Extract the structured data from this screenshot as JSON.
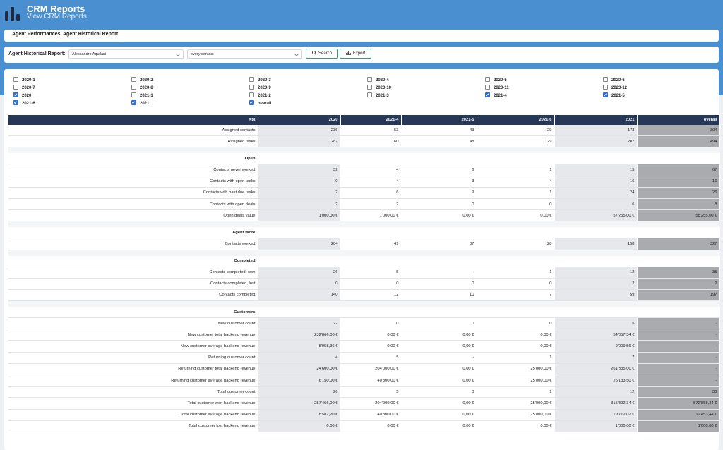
{
  "header": {
    "title": "CRM Reports",
    "subtitle": "View CRM Reports"
  },
  "tabs": [
    {
      "label": "Agent Performances",
      "active": false
    },
    {
      "label": "Agent Historical Report",
      "active": true
    }
  ],
  "filters": {
    "label": "Agent Historical Report:",
    "agent": "Alessandro Aquilani",
    "contacts": "every contact",
    "search": "Search",
    "export": "Export"
  },
  "periods": [
    {
      "label": "2020-1",
      "checked": false
    },
    {
      "label": "2020-2",
      "checked": false
    },
    {
      "label": "2020-3",
      "checked": false
    },
    {
      "label": "2020-4",
      "checked": false
    },
    {
      "label": "2020-5",
      "checked": false
    },
    {
      "label": "2020-6",
      "checked": false
    },
    {
      "label": "2020-7",
      "checked": false
    },
    {
      "label": "2020-8",
      "checked": false
    },
    {
      "label": "2020-9",
      "checked": false
    },
    {
      "label": "2020-10",
      "checked": false
    },
    {
      "label": "2020-11",
      "checked": false
    },
    {
      "label": "2020-12",
      "checked": false
    },
    {
      "label": "2020",
      "checked": true
    },
    {
      "label": "2021-1",
      "checked": false
    },
    {
      "label": "2021-2",
      "checked": false
    },
    {
      "label": "2021-3",
      "checked": false
    },
    {
      "label": "2021-4",
      "checked": true
    },
    {
      "label": "2021-5",
      "checked": true
    },
    {
      "label": "2021-6",
      "checked": true
    },
    {
      "label": "2021",
      "checked": true
    },
    {
      "label": "overall",
      "checked": true
    }
  ],
  "table": {
    "columns": [
      "Kpi",
      "2020",
      "2021-4",
      "2021-5",
      "2021-6",
      "2021",
      "overall"
    ],
    "rows": [
      {
        "label": "Assigned contacts",
        "values": [
          236,
          53,
          43,
          29,
          173,
          394
        ]
      },
      {
        "label": "Assigned tasks",
        "values": [
          287,
          60,
          48,
          29,
          207,
          494
        ]
      },
      {
        "section": "Open"
      },
      {
        "label": "Contacts never worked",
        "values": [
          32,
          4,
          6,
          1,
          15,
          67
        ]
      },
      {
        "label": "Contacts with open tasks",
        "values": [
          0,
          4,
          3,
          4,
          16,
          16
        ]
      },
      {
        "label": "Contacts with past due tasks",
        "values": [
          2,
          6,
          9,
          1,
          24,
          26
        ]
      },
      {
        "label": "Contacts with open deals",
        "values": [
          2,
          2,
          0,
          0,
          6,
          8
        ]
      },
      {
        "label": "Open deals value",
        "values": [
          "1'000,00 €",
          "1'000,00 €",
          "0,00 €",
          "0,00 €",
          "57'255,00 €",
          "58'255,00 €"
        ]
      },
      {
        "section": "Agent Work"
      },
      {
        "label": "Contacts worked",
        "values": [
          204,
          49,
          37,
          28,
          158,
          327
        ]
      },
      {
        "section": "Completed"
      },
      {
        "label": "Contacts completed, won",
        "values": [
          26,
          5,
          "-",
          1,
          12,
          35
        ]
      },
      {
        "label": "Contacts completed, lost",
        "values": [
          0,
          0,
          0,
          0,
          2,
          2
        ]
      },
      {
        "label": "Contacts completed",
        "values": [
          140,
          12,
          10,
          7,
          59,
          197
        ]
      },
      {
        "section": "Customers"
      },
      {
        "label": "New customer count",
        "values": [
          22,
          0,
          0,
          0,
          5,
          "-"
        ]
      },
      {
        "label": "New customer total backend revenue",
        "values": [
          "232'866,00 €",
          "0,00 €",
          "0,00 €",
          "0,00 €",
          "54'057,34 €",
          "-"
        ]
      },
      {
        "label": "New customer average backend revenue",
        "values": [
          "8'958,36 €",
          "0,00 €",
          "0,00 €",
          "0,00 €",
          "9'009,56 €",
          "-"
        ]
      },
      {
        "label": "Returning customer count",
        "values": [
          4,
          5,
          "-",
          1,
          7,
          "-"
        ]
      },
      {
        "label": "Returning customer total backend revenue",
        "values": [
          "24'600,00 €",
          "204'000,00 €",
          "0,00 €",
          "25'000,00 €",
          "261'335,00 €",
          "-"
        ]
      },
      {
        "label": "Returning customer average backend revenue",
        "values": [
          "6'150,00 €",
          "40'800,00 €",
          "0,00 €",
          "25'000,00 €",
          "26'133,50 €",
          "-"
        ]
      },
      {
        "label": "Total customer count",
        "values": [
          26,
          5,
          0,
          1,
          12,
          35
        ]
      },
      {
        "label": "Total customer won backend revenue",
        "values": [
          "257'466,00 €",
          "204'000,00 €",
          "0,00 €",
          "25'000,00 €",
          "315'392,34 €",
          "572'858,34 €"
        ]
      },
      {
        "label": "Total customer average backend revenue",
        "values": [
          "8'582,20 €",
          "40'800,00 €",
          "0,00 €",
          "25'000,00 €",
          "19'712,02 €",
          "12'453,44 €"
        ]
      },
      {
        "label": "Total customer lost backend revenue",
        "values": [
          "0,00 €",
          "0,00 €",
          "0,00 €",
          "0,00 €",
          "1'000,00 €",
          "1'000,00 €"
        ]
      }
    ]
  }
}
